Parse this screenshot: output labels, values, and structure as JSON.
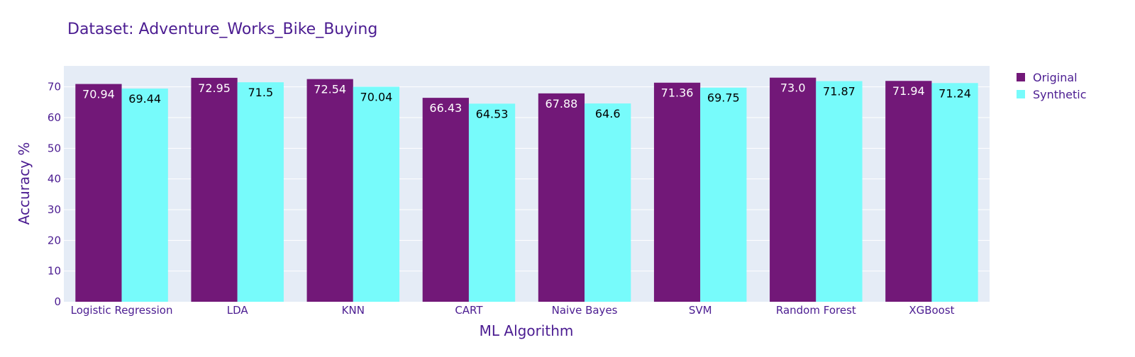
{
  "chart_data": {
    "type": "bar",
    "title": "Dataset: Adventure_Works_Bike_Buying",
    "xlabel": "ML Algorithm",
    "ylabel": "Accuracy %",
    "categories": [
      "Logistic Regression",
      "LDA",
      "KNN",
      "CART",
      "Naive Bayes",
      "SVM",
      "Random Forest",
      "XGBoost"
    ],
    "series": [
      {
        "name": "Original",
        "color": "#721878",
        "values": [
          70.94,
          72.95,
          72.54,
          66.43,
          67.88,
          71.36,
          73.0,
          71.94
        ],
        "labels": [
          "70.94",
          "72.95",
          "72.54",
          "66.43",
          "67.88",
          "71.36",
          "73.0",
          "71.94"
        ]
      },
      {
        "name": "Synthetic",
        "color": "#77FBFB",
        "values": [
          69.44,
          71.5,
          70.04,
          64.53,
          64.6,
          69.75,
          71.87,
          71.24
        ],
        "labels": [
          "69.44",
          "71.5",
          "70.04",
          "64.53",
          "64.6",
          "69.75",
          "71.87",
          "71.24"
        ]
      }
    ],
    "yticks": [
      "0",
      "10",
      "20",
      "30",
      "40",
      "50",
      "60",
      "70"
    ],
    "ylim": [
      0,
      76.84
    ],
    "grid": true,
    "legend_position": "top-right",
    "colors": {
      "plot_background": "#E5ECF6",
      "grid": "#FFFFFF",
      "text": "#4B1C91"
    }
  }
}
